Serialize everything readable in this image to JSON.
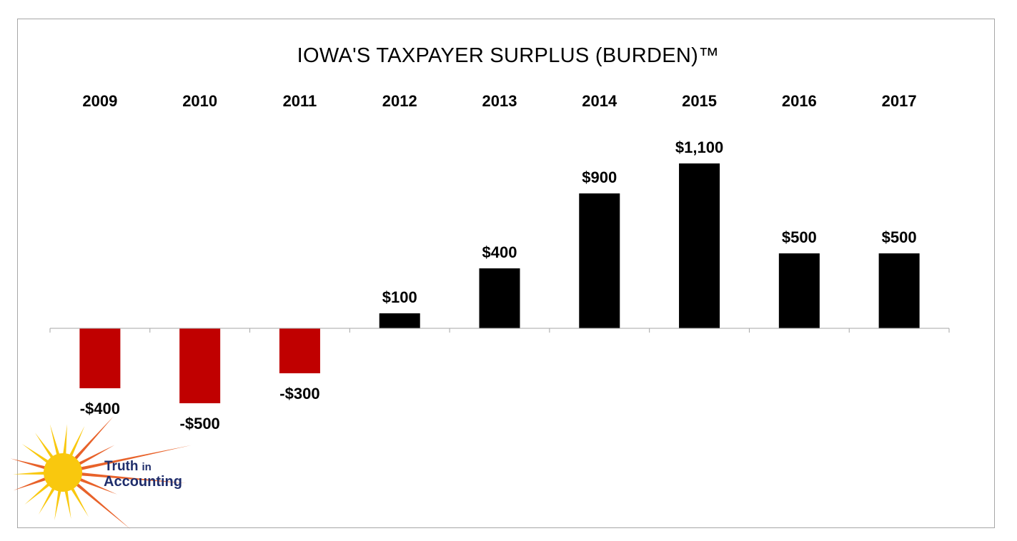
{
  "chart_data": {
    "type": "bar",
    "title": "IOWA'S TAXPAYER SURPLUS (BURDEN)™",
    "categories": [
      "2009",
      "2010",
      "2011",
      "2012",
      "2013",
      "2014",
      "2015",
      "2016",
      "2017"
    ],
    "values": [
      -400,
      -500,
      -300,
      100,
      400,
      900,
      1100,
      500,
      500
    ],
    "labels": [
      "-$400",
      "-$500",
      "-$300",
      "$100",
      "$400",
      "$900",
      "$1,100",
      "$500",
      "$500"
    ],
    "ylim": [
      -600,
      1200
    ],
    "grid": false,
    "legend": "none",
    "colors": {
      "positive": "#000000",
      "negative": "#c00000"
    }
  },
  "logo": {
    "line1": "Truth",
    "line1_small": "in",
    "line2": "Accounting",
    "sun_color": "#f9c80e",
    "ray_color": "#e8622a"
  }
}
